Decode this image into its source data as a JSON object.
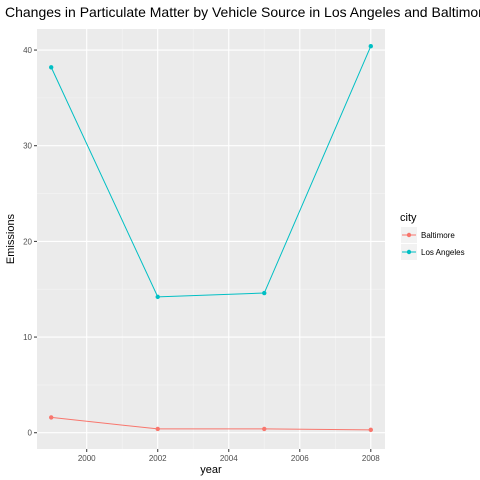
{
  "chart_data": {
    "type": "line",
    "title": "Changes in Particulate Matter by Vehicle Source in Los Angeles and Baltimore",
    "xlabel": "year",
    "ylabel": "Emissions",
    "x": [
      1999,
      2002,
      2005,
      2008
    ],
    "xlim": [
      1998.6,
      2008.4
    ],
    "ylim": [
      -1.7,
      42.2
    ],
    "xticks": [
      2000,
      2002,
      2004,
      2006,
      2008
    ],
    "yticks": [
      0,
      10,
      20,
      30,
      40
    ],
    "xtick_labels": [
      "2000",
      "2002",
      "2004",
      "2006",
      "2008"
    ],
    "ytick_labels": [
      "0",
      "10",
      "20",
      "30",
      "40"
    ],
    "grid": true,
    "legend": {
      "title": "city",
      "position": "right"
    },
    "series": [
      {
        "name": "Baltimore",
        "color": "#F8766D",
        "values": [
          1.6,
          0.4,
          0.4,
          0.3
        ]
      },
      {
        "name": "Los Angeles",
        "color": "#00BFC4",
        "values": [
          38.2,
          14.2,
          14.6,
          40.4
        ]
      }
    ]
  }
}
